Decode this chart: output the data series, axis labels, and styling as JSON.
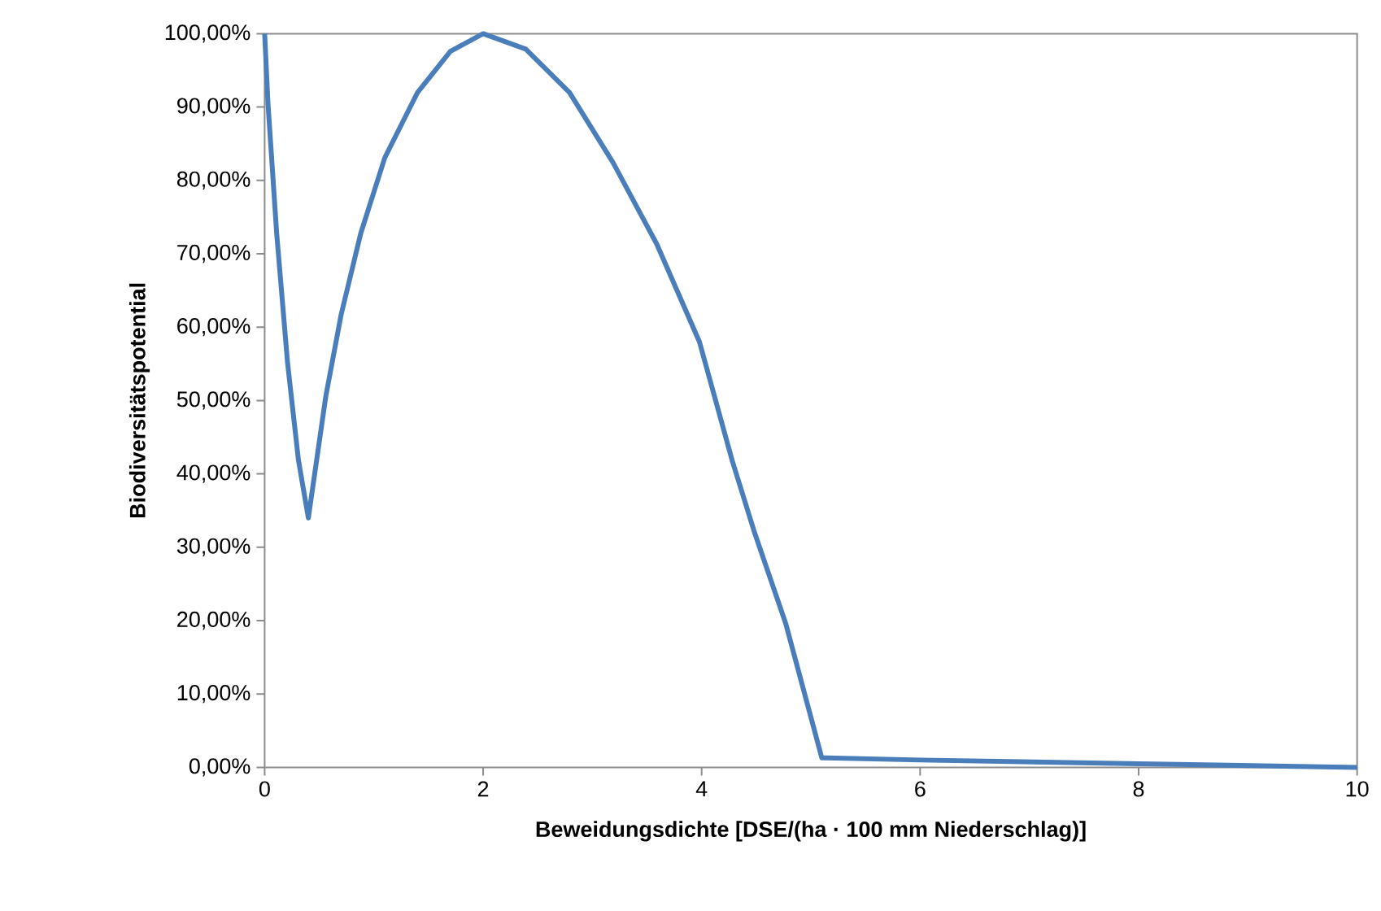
{
  "chart_data": {
    "type": "line",
    "xlabel": "Beweidungsdichte [DSE/(ha · 100 mm Niederschlag)]",
    "ylabel": "Biodiversitätspotential",
    "x": [
      0,
      0.03,
      0.11,
      0.21,
      0.31,
      0.4,
      0.56,
      0.7,
      0.88,
      1.1,
      1.4,
      1.7,
      2.0,
      2.39,
      2.79,
      3.19,
      3.59,
      3.98,
      4.28,
      4.48,
      4.77,
      5.1,
      6,
      8,
      10
    ],
    "series": [
      {
        "color": "#4a7ebb",
        "values": [
          100,
          90.6,
          72.8,
          55.1,
          41.8,
          34.0,
          50.6,
          61.7,
          72.8,
          83.1,
          92.0,
          97.6,
          100,
          97.9,
          92.0,
          82.4,
          71.3,
          58.0,
          41.8,
          32.2,
          19.6,
          1.3,
          1.0,
          0.5,
          0
        ]
      }
    ],
    "xlim": [
      0,
      10
    ],
    "ylim": [
      0,
      100
    ],
    "xticks": [
      0,
      2,
      4,
      6,
      8,
      10
    ],
    "yticks": [
      {
        "value": 0,
        "label": "0,00%"
      },
      {
        "value": 10,
        "label": "10,00%"
      },
      {
        "value": 20,
        "label": "20,00%"
      },
      {
        "value": 30,
        "label": "30,00%"
      },
      {
        "value": 40,
        "label": "40,00%"
      },
      {
        "value": 50,
        "label": "50,00%"
      },
      {
        "value": 60,
        "label": "60,00%"
      },
      {
        "value": 70,
        "label": "70,00%"
      },
      {
        "value": 80,
        "label": "80,00%"
      },
      {
        "value": 90,
        "label": "90,00%"
      },
      {
        "value": 100,
        "label": "100,00%"
      }
    ],
    "line_style": "solid"
  }
}
